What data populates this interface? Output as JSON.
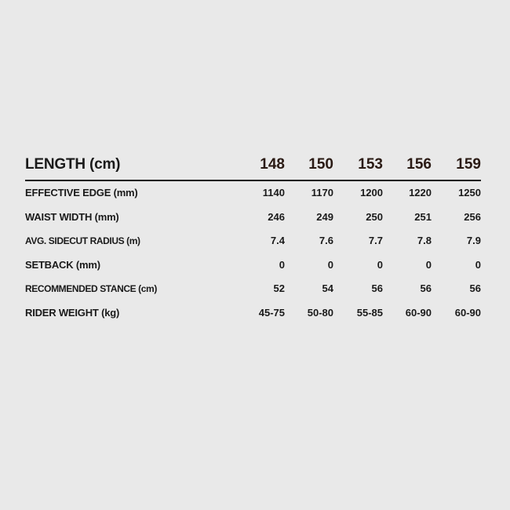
{
  "header": {
    "label": "LENGTH (cm)",
    "values": [
      "148",
      "150",
      "153",
      "156",
      "159"
    ]
  },
  "rows": [
    {
      "label": "EFFECTIVE EDGE (mm)",
      "values": [
        "1140",
        "1170",
        "1200",
        "1220",
        "1250"
      ]
    },
    {
      "label": "WAIST WIDTH (mm)",
      "values": [
        "246",
        "249",
        "250",
        "251",
        "256"
      ]
    },
    {
      "label": "AVG. SIDECUT RADIUS (m)",
      "values": [
        "7.4",
        "7.6",
        "7.7",
        "7.8",
        "7.9"
      ]
    },
    {
      "label": "SETBACK (mm)",
      "values": [
        "0",
        "0",
        "0",
        "0",
        "0"
      ]
    },
    {
      "label": "RECOMMENDED STANCE (cm)",
      "values": [
        "52",
        "54",
        "56",
        "56",
        "56"
      ]
    },
    {
      "label": "RIDER WEIGHT (kg)",
      "values": [
        "45-75",
        "50-80",
        "55-85",
        "60-90",
        "60-90"
      ]
    }
  ]
}
